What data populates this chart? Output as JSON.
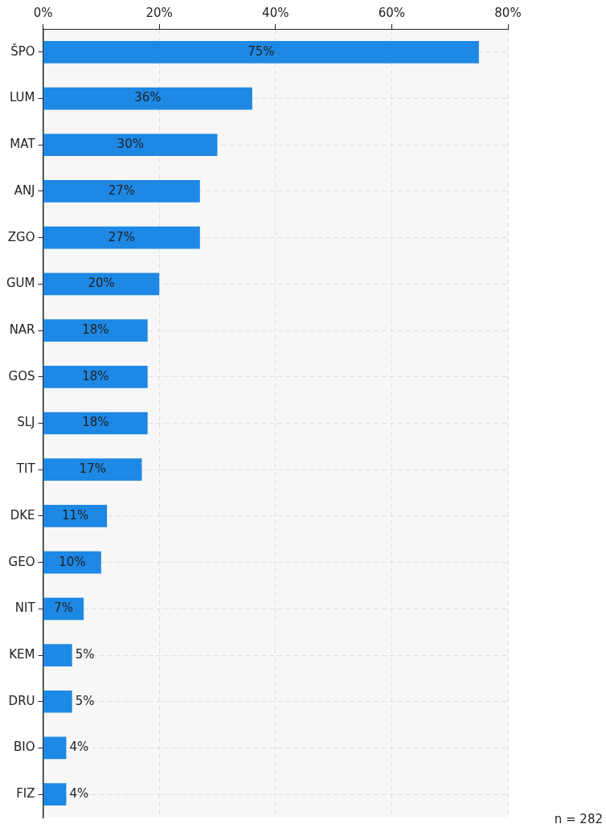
{
  "chart_data": {
    "type": "bar",
    "orientation": "horizontal",
    "categories": [
      "ŠPO",
      "LUM",
      "MAT",
      "ANJ",
      "ZGO",
      "GUM",
      "NAR",
      "GOS",
      "SLJ",
      "TIT",
      "DKE",
      "GEO",
      "NIT",
      "KEM",
      "DRU",
      "BIO",
      "FIZ"
    ],
    "values": [
      75,
      36,
      30,
      27,
      27,
      20,
      18,
      18,
      18,
      17,
      11,
      10,
      7,
      5,
      5,
      4,
      4
    ],
    "color": "#1e88e5",
    "xlim": [
      0,
      80
    ],
    "xticks": [
      {
        "value": 0,
        "label": "0%"
      },
      {
        "value": 20,
        "label": "20%"
      },
      {
        "value": 40,
        "label": "40%"
      },
      {
        "value": 60,
        "label": "60%"
      },
      {
        "value": 80,
        "label": "80%"
      }
    ],
    "value_labels": [
      "75%",
      "36%",
      "30%",
      "27%",
      "27%",
      "20%",
      "18%",
      "18%",
      "18%",
      "17%",
      "11%",
      "10%",
      "7%",
      "5%",
      "5%",
      "4%",
      "4%"
    ],
    "grid": true,
    "legend": false,
    "annotations": [
      "n = 282"
    ]
  }
}
